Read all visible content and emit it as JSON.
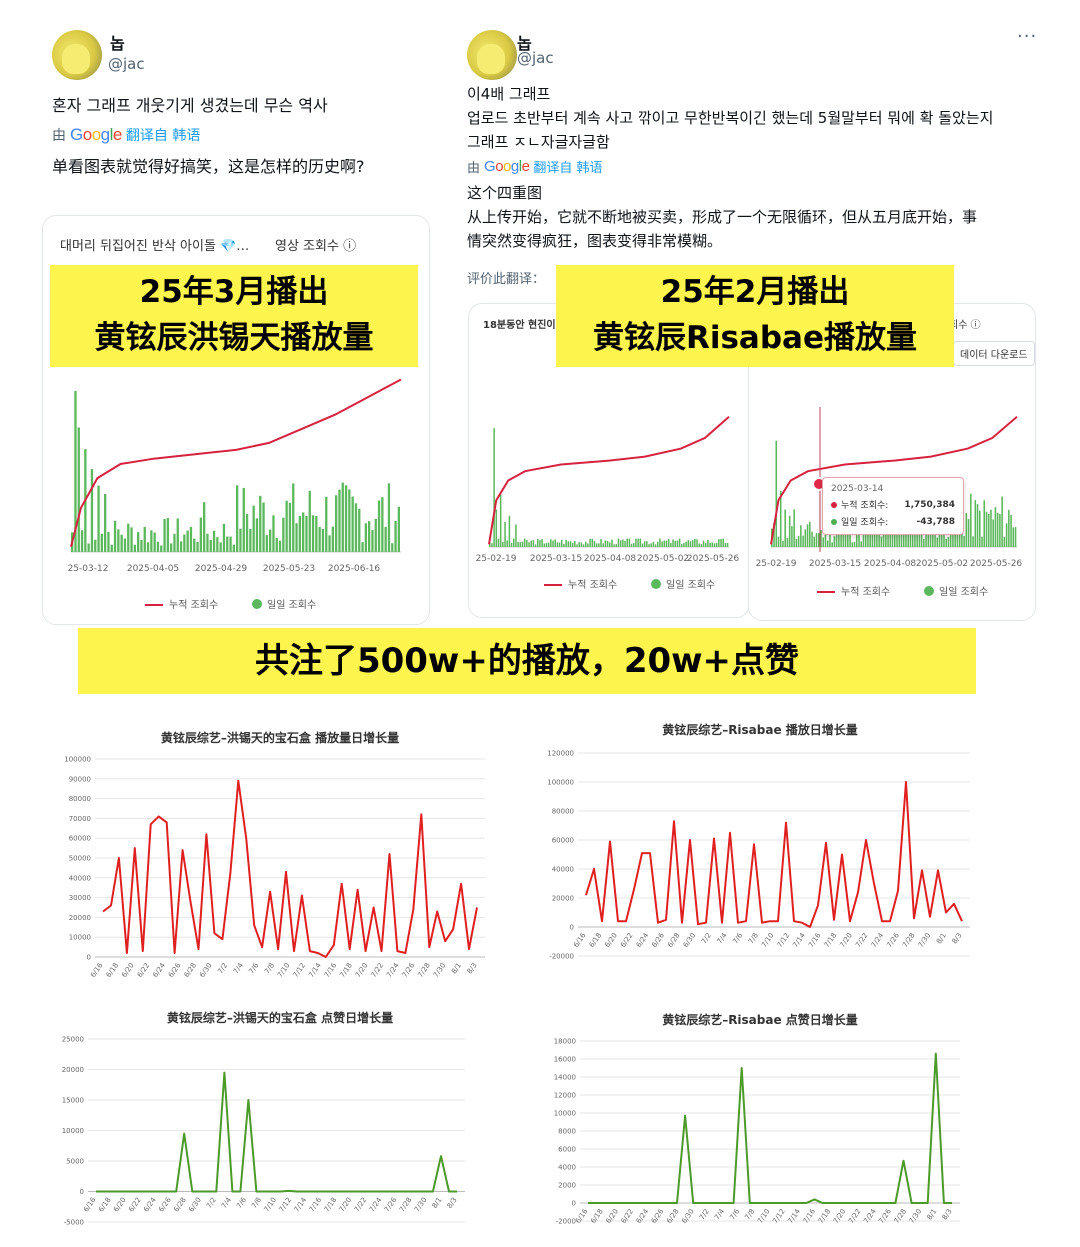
{
  "post_left": {
    "name": "놉",
    "handle": "@jac",
    "text_ko": "혼자 그래프 개웃기게 생겼는데 무슨 역사",
    "translate_by": "由",
    "google": "Google",
    "translate_label": "翻译自 韩语",
    "text_zh": "单看图表就觉得好搞笑，这是怎样的历史啊?",
    "card_title": "대머리 뒤집어진 반삭 아이돌 💎…",
    "card_metric": "영상 조회수 ⓘ"
  },
  "post_right": {
    "name": "놉",
    "handle": "@jac",
    "more": "···",
    "text_ko": [
      "이4배 그래프",
      "업로드 초반부터 계속 사고 깎이고 무한반복이긴 했는데 5월말부터 뭐에 확 돌았는지",
      "그래프 ㅈㄴ자글자글함"
    ],
    "translate_by": "由",
    "google": "Google",
    "translate_label": "翻译自 韩语",
    "text_zh": [
      "这个四重图",
      "从上传开始，它就不断地被买卖，形成了一个无限循环，但从五月底开始，事",
      "情突然变得疯狂，图表变得非常模糊。"
    ],
    "rate_label": "评价此翻译：",
    "card1_title": "18분동안 현진이",
    "card2_metric": "회수 ⓘ",
    "card2_button": "데이터 다운로드"
  },
  "banners": {
    "left_line1": "25年3月播出",
    "left_line2": "黄铉辰洪锡天播放量",
    "right_line1": "25年2月播出",
    "right_line2": "黄铉辰Risabae播放量",
    "middle": "共注了500w+的播放，20w+点赞"
  },
  "mini_charts": {
    "left": {
      "xticks": [
        "25-03-12",
        "2025-04-05",
        "2025-04-29",
        "2025-05-23",
        "2025-06-16"
      ],
      "legend": [
        "누적 조회수",
        "일일 조회수"
      ]
    },
    "right1": {
      "xticks": [
        "25-02-19",
        "2025-03-15",
        "2025-04-08",
        "2025-05-02",
        "2025-05-26"
      ],
      "legend": [
        "누적 조회수",
        "일일 조회수"
      ]
    },
    "right2": {
      "xticks": [
        "25-02-19",
        "2025-03-15",
        "2025-04-08",
        "2025-05-02",
        "2025-05-26"
      ],
      "legend": [
        "누적 조회수",
        "일일 조회수"
      ],
      "tooltip": {
        "date": "2025-03-14",
        "cum_label": "누적 조회수:",
        "cum_value": "1,750,384",
        "daily_label": "일일 조회수:",
        "daily_value": "-43,788"
      }
    }
  },
  "chart_data": [
    {
      "type": "line",
      "title": "黄铉辰综艺–洪锡天的宝石盒  播放量日增长量",
      "color": "#e02020",
      "ylim": [
        0,
        100000
      ],
      "yticks": [
        0,
        10000,
        20000,
        30000,
        40000,
        50000,
        60000,
        70000,
        80000,
        90000,
        100000
      ],
      "xlabels": [
        "6/16",
        "6/18",
        "6/20",
        "6/22",
        "6/24",
        "6/26",
        "6/28",
        "6/30",
        "7/2",
        "7/4",
        "7/6",
        "7/8",
        "7/10",
        "7/12",
        "7/14",
        "7/16",
        "7/18",
        "7/20",
        "7/22",
        "7/24",
        "7/26",
        "7/28",
        "7/30",
        "8/1",
        "8/3"
      ],
      "values": [
        23000,
        26000,
        50000,
        2000,
        55000,
        3000,
        67000,
        71000,
        68000,
        2000,
        54000,
        28000,
        4000,
        62000,
        12000,
        9000,
        42000,
        89000,
        60000,
        16000,
        5000,
        33000,
        4000,
        43000,
        3000,
        31000,
        3000,
        2000,
        0,
        6000,
        37000,
        4000,
        34000,
        3000,
        25000,
        3000,
        52000,
        3000,
        2000,
        24000,
        72000,
        5000,
        23000,
        8000,
        14000,
        37000,
        4000,
        25000
      ]
    },
    {
      "type": "line",
      "title": "黄铉辰综艺–Risabae 播放日增长量",
      "color": "#e02020",
      "ylim": [
        -20000,
        120000
      ],
      "yticks": [
        -20000,
        0,
        20000,
        40000,
        60000,
        80000,
        100000,
        120000
      ],
      "xlabels": [
        "6/16",
        "6/18",
        "6/20",
        "6/22",
        "6/24",
        "6/26",
        "6/28",
        "6/30",
        "7/2",
        "7/4",
        "7/6",
        "7/8",
        "7/10",
        "7/12",
        "7/14",
        "7/16",
        "7/18",
        "7/20",
        "7/22",
        "7/24",
        "7/26",
        "7/28",
        "7/30",
        "8/1",
        "8/3"
      ],
      "values": [
        22000,
        40000,
        4000,
        59000,
        4000,
        4000,
        26000,
        51000,
        51000,
        3000,
        5000,
        73000,
        3000,
        60000,
        2000,
        3000,
        61000,
        3000,
        65000,
        3000,
        4000,
        57000,
        3000,
        4000,
        4000,
        72000,
        4000,
        3000,
        0,
        15000,
        58000,
        5000,
        50000,
        4000,
        24000,
        60000,
        30000,
        4000,
        4000,
        25000,
        100000,
        6000,
        39000,
        7000,
        39000,
        10000,
        16000,
        4000
      ]
    },
    {
      "type": "line",
      "title": "黄铉辰综艺–洪锡天的宝石盒 点赞日增长量",
      "color": "#4c9a2a",
      "ylim": [
        -5000,
        25000
      ],
      "yticks": [
        -5000,
        0,
        5000,
        10000,
        15000,
        20000,
        25000
      ],
      "xlabels": [
        "6/16",
        "6/18",
        "6/20",
        "6/22",
        "6/24",
        "6/26",
        "6/28",
        "6/30",
        "7/2",
        "7/4",
        "7/6",
        "7/8",
        "7/10",
        "7/12",
        "7/14",
        "7/16",
        "7/18",
        "7/20",
        "7/22",
        "7/24",
        "7/26",
        "7/28",
        "7/30",
        "8/1",
        "8/3"
      ],
      "values": [
        0,
        0,
        0,
        0,
        0,
        0,
        0,
        0,
        0,
        0,
        0,
        9500,
        0,
        0,
        0,
        0,
        19500,
        0,
        0,
        15000,
        0,
        0,
        0,
        0,
        100,
        0,
        0,
        0,
        0,
        0,
        0,
        0,
        0,
        0,
        0,
        0,
        0,
        0,
        0,
        0,
        0,
        0,
        0,
        5800,
        0,
        0
      ]
    },
    {
      "type": "line",
      "title": "黄铉辰综艺–Risabae 点赞日增长量",
      "color": "#4c9a2a",
      "ylim": [
        -2000,
        18000
      ],
      "yticks": [
        -2000,
        0,
        2000,
        4000,
        6000,
        8000,
        10000,
        12000,
        14000,
        16000,
        18000
      ],
      "xlabels": [
        "6/16",
        "6/18",
        "6/20",
        "6/22",
        "6/24",
        "6/26",
        "6/28",
        "6/30",
        "7/2",
        "7/4",
        "7/6",
        "7/8",
        "7/10",
        "7/12",
        "7/14",
        "7/16",
        "7/18",
        "7/20",
        "7/22",
        "7/24",
        "7/26",
        "7/28",
        "7/30",
        "8/1",
        "8/3"
      ],
      "values": [
        0,
        0,
        0,
        0,
        0,
        0,
        0,
        0,
        0,
        0,
        0,
        0,
        9700,
        0,
        0,
        0,
        0,
        0,
        0,
        15000,
        0,
        0,
        0,
        0,
        0,
        0,
        0,
        0,
        400,
        0,
        0,
        0,
        0,
        0,
        0,
        0,
        0,
        0,
        0,
        4700,
        0,
        0,
        0,
        16600,
        0,
        0
      ]
    }
  ]
}
